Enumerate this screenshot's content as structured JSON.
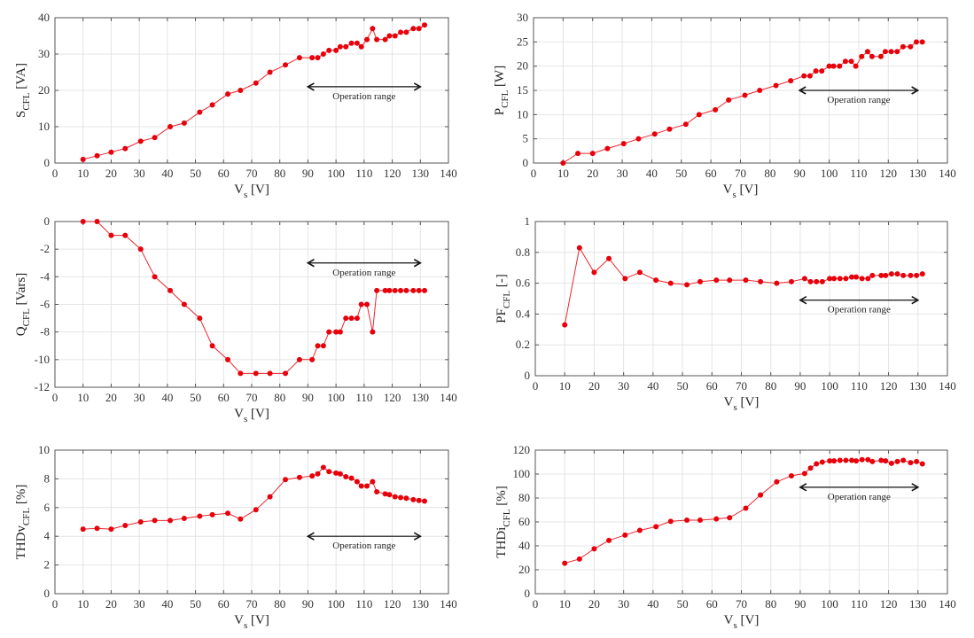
{
  "chart_data": [
    {
      "id": "s",
      "type": "line",
      "title": "",
      "ylabel_main": "S",
      "ylabel_sub": "CFL",
      "ylabel_unit": " [VA]",
      "xlabel_main": "V",
      "xlabel_sub": "s",
      "xlabel_unit": " [V]",
      "xlim": [
        0,
        140
      ],
      "ylim": [
        0,
        40
      ],
      "xticks": [
        0,
        10,
        20,
        30,
        40,
        50,
        60,
        70,
        80,
        90,
        100,
        110,
        120,
        130,
        140
      ],
      "yticks": [
        0,
        10,
        20,
        30,
        40
      ],
      "ytick_labels": [
        "0",
        "10",
        "20",
        "30",
        "40"
      ],
      "grid": true,
      "annotation": {
        "text": "Operation range",
        "x_start": 90,
        "x_end": 130,
        "y": 21
      },
      "series": [
        {
          "name": "S_CFL",
          "color": "#e8000b",
          "x": [
            10,
            15,
            20,
            25,
            30.5,
            35.5,
            41,
            46,
            51.5,
            56,
            61.5,
            66,
            71.5,
            76.5,
            82,
            87,
            91.5,
            93.5,
            95.5,
            97.5,
            100,
            101.5,
            103.5,
            105.5,
            107.5,
            109,
            111,
            113,
            114.5,
            117.5,
            119,
            121,
            123,
            125,
            127.5,
            129.5,
            131.5
          ],
          "y": [
            1,
            2,
            3,
            4,
            6,
            7,
            10,
            11,
            14,
            16,
            19,
            20,
            22,
            25,
            27,
            29,
            29,
            29,
            30,
            31,
            31,
            32,
            32,
            33,
            33,
            32,
            34,
            37,
            34,
            34,
            35,
            35,
            36,
            36,
            37,
            37,
            38
          ]
        }
      ]
    },
    {
      "id": "p",
      "type": "line",
      "title": "",
      "ylabel_main": "P",
      "ylabel_sub": "CFL",
      "ylabel_unit": " [W]",
      "xlabel_main": "V",
      "xlabel_sub": "s",
      "xlabel_unit": " [V]",
      "xlim": [
        0,
        140
      ],
      "ylim": [
        0,
        30
      ],
      "xticks": [
        0,
        10,
        20,
        30,
        40,
        50,
        60,
        70,
        80,
        90,
        100,
        110,
        120,
        130,
        140
      ],
      "yticks": [
        0,
        5,
        10,
        15,
        20,
        25,
        30
      ],
      "ytick_labels": [
        "0",
        "5",
        "10",
        "15",
        "20",
        "25",
        "30"
      ],
      "grid": true,
      "annotation": {
        "text": "Operation range",
        "x_start": 90,
        "x_end": 130,
        "y": 15
      },
      "series": [
        {
          "name": "P_CFL",
          "color": "#e8000b",
          "x": [
            10,
            15,
            20,
            25,
            30.5,
            35.5,
            41,
            46,
            51.5,
            56,
            61.5,
            66,
            71.5,
            76.5,
            82,
            87,
            91.5,
            93.5,
            95.5,
            97.5,
            100,
            101.5,
            103.5,
            105.5,
            107.5,
            109,
            111,
            113,
            114.5,
            117.5,
            119,
            121,
            123,
            125,
            127.5,
            129.5,
            131.5
          ],
          "y": [
            0,
            2,
            2,
            3,
            4,
            5,
            6,
            7,
            8,
            10,
            11,
            13,
            14,
            15,
            16,
            17,
            18,
            18,
            19,
            19,
            20,
            20,
            20,
            21,
            21,
            20,
            22,
            23,
            22,
            22,
            23,
            23,
            23,
            24,
            24,
            25,
            25
          ]
        }
      ]
    },
    {
      "id": "q",
      "type": "line",
      "title": "",
      "ylabel_main": "Q",
      "ylabel_sub": "CFL",
      "ylabel_unit": " [Vars]",
      "xlabel_main": "V",
      "xlabel_sub": "s",
      "xlabel_unit": " [V]",
      "xlim": [
        0,
        140
      ],
      "ylim": [
        -12,
        0
      ],
      "xticks": [
        0,
        10,
        20,
        30,
        40,
        50,
        60,
        70,
        80,
        90,
        100,
        110,
        120,
        130,
        140
      ],
      "yticks": [
        -12,
        -10,
        -8,
        -6,
        -4,
        -2,
        0
      ],
      "ytick_labels": [
        "-12",
        "-10",
        "-8",
        "-6",
        "-4",
        "-2",
        "0"
      ],
      "grid": true,
      "annotation": {
        "text": "Operation range",
        "x_start": 90,
        "x_end": 130,
        "y": -3
      },
      "series": [
        {
          "name": "Q_CFL",
          "color": "#e8000b",
          "x": [
            10,
            15,
            20,
            25,
            30.5,
            35.5,
            41,
            46,
            51.5,
            56,
            61.5,
            66,
            71.5,
            76.5,
            82,
            87,
            91.5,
            93.5,
            95.5,
            97.5,
            100,
            101.5,
            103.5,
            105.5,
            107.5,
            109,
            111,
            113,
            114.5,
            117.5,
            119,
            121,
            123,
            125,
            127.5,
            129.5,
            131.5
          ],
          "y": [
            0,
            0,
            -1,
            -1,
            -2,
            -4,
            -5,
            -6,
            -7,
            -9,
            -10,
            -11,
            -11,
            -11,
            -11,
            -10,
            -10,
            -9,
            -9,
            -8,
            -8,
            -8,
            -7,
            -7,
            -7,
            -6,
            -6,
            -8,
            -5,
            -5,
            -5,
            -5,
            -5,
            -5,
            -5,
            -5,
            -5
          ]
        }
      ]
    },
    {
      "id": "pf",
      "type": "line",
      "title": "",
      "ylabel_main": "PF",
      "ylabel_sub": "CFL",
      "ylabel_unit": " [-]",
      "xlabel_main": "V",
      "xlabel_sub": "s",
      "xlabel_unit": " [V]",
      "xlim": [
        0,
        140
      ],
      "ylim": [
        0,
        1
      ],
      "xticks": [
        0,
        10,
        20,
        30,
        40,
        50,
        60,
        70,
        80,
        90,
        100,
        110,
        120,
        130,
        140
      ],
      "yticks": [
        0,
        0.2,
        0.4,
        0.6,
        0.8,
        1
      ],
      "ytick_labels": [
        "0",
        "0.2",
        "0.4",
        "0.6",
        "0.8",
        "1"
      ],
      "grid": true,
      "annotation": {
        "text": "Operation range",
        "x_start": 90,
        "x_end": 130,
        "y": 0.49
      },
      "series": [
        {
          "name": "PF_CFL",
          "color": "#e8000b",
          "x": [
            10,
            15,
            20,
            25,
            30.5,
            35.5,
            41,
            46,
            51.5,
            56,
            61.5,
            66,
            71.5,
            76.5,
            82,
            87,
            91.5,
            93.5,
            95.5,
            97.5,
            100,
            101.5,
            103.5,
            105.5,
            107.5,
            109,
            111,
            113,
            114.5,
            117.5,
            119,
            121,
            123,
            125,
            127.5,
            129.5,
            131.5
          ],
          "y": [
            0.33,
            0.83,
            0.67,
            0.76,
            0.63,
            0.67,
            0.62,
            0.6,
            0.59,
            0.61,
            0.62,
            0.62,
            0.62,
            0.61,
            0.6,
            0.61,
            0.63,
            0.61,
            0.61,
            0.61,
            0.63,
            0.63,
            0.63,
            0.63,
            0.64,
            0.64,
            0.63,
            0.63,
            0.65,
            0.65,
            0.65,
            0.66,
            0.66,
            0.65,
            0.65,
            0.65,
            0.66
          ]
        }
      ]
    },
    {
      "id": "thdv",
      "type": "line",
      "title": "",
      "ylabel_main": "THDv",
      "ylabel_sub": "CFL",
      "ylabel_unit": " [%]",
      "xlabel_main": "V",
      "xlabel_sub": "s",
      "xlabel_unit": " [V]",
      "xlim": [
        0,
        140
      ],
      "ylim": [
        0,
        10
      ],
      "xticks": [
        0,
        10,
        20,
        30,
        40,
        50,
        60,
        70,
        80,
        90,
        100,
        110,
        120,
        130,
        140
      ],
      "yticks": [
        0,
        2,
        4,
        6,
        8,
        10
      ],
      "ytick_labels": [
        "0",
        "2",
        "4",
        "6",
        "8",
        "10"
      ],
      "grid": true,
      "annotation": {
        "text": "Operation range",
        "x_start": 90,
        "x_end": 130,
        "y": 4
      },
      "series": [
        {
          "name": "THDv_CFL",
          "color": "#e8000b",
          "x": [
            10,
            15,
            20,
            25,
            30.5,
            35.5,
            41,
            46,
            51.5,
            56,
            61.5,
            66,
            71.5,
            76.5,
            82,
            87,
            91.5,
            93.5,
            95.5,
            97.5,
            100,
            101.5,
            103.5,
            105.5,
            107.5,
            109,
            111,
            113,
            114.5,
            117.5,
            119,
            121,
            123,
            125,
            127.5,
            129.5,
            131.5
          ],
          "y": [
            4.5,
            4.55,
            4.5,
            4.75,
            5.0,
            5.1,
            5.1,
            5.25,
            5.4,
            5.5,
            5.6,
            5.2,
            5.85,
            6.75,
            7.95,
            8.1,
            8.2,
            8.35,
            8.8,
            8.5,
            8.4,
            8.35,
            8.15,
            8.05,
            7.8,
            7.5,
            7.5,
            7.8,
            7.1,
            6.95,
            6.9,
            6.75,
            6.7,
            6.65,
            6.55,
            6.5,
            6.45
          ]
        }
      ]
    },
    {
      "id": "thdi",
      "type": "line",
      "title": "",
      "ylabel_main": "THDi",
      "ylabel_sub": "CFL",
      "ylabel_unit": " [%]",
      "xlabel_main": "V",
      "xlabel_sub": "s",
      "xlabel_unit": " [V]",
      "xlim": [
        0,
        140
      ],
      "ylim": [
        0,
        120
      ],
      "xticks": [
        0,
        10,
        20,
        30,
        40,
        50,
        60,
        70,
        80,
        90,
        100,
        110,
        120,
        130,
        140
      ],
      "yticks": [
        0,
        20,
        40,
        60,
        80,
        100,
        120
      ],
      "ytick_labels": [
        "0",
        "20",
        "40",
        "60",
        "80",
        "100",
        "120"
      ],
      "grid": true,
      "annotation": {
        "text": "Operation range",
        "x_start": 90,
        "x_end": 130,
        "y": 89
      },
      "series": [
        {
          "name": "THDi_CFL",
          "color": "#e8000b",
          "x": [
            10,
            15,
            20,
            25,
            30.5,
            35.5,
            41,
            46,
            51.5,
            56,
            61.5,
            66,
            71.5,
            76.5,
            82,
            87,
            91.5,
            93.5,
            95.5,
            97.5,
            100,
            101.5,
            103.5,
            105.5,
            107.5,
            109,
            111,
            113,
            114.5,
            117.5,
            119,
            121,
            123,
            125,
            127.5,
            129.5,
            131.5
          ],
          "y": [
            25.5,
            29,
            37.5,
            44.5,
            49,
            53,
            56,
            60.5,
            61.5,
            61.5,
            62.5,
            63.5,
            71.5,
            82.5,
            93.5,
            98.5,
            100.5,
            105,
            108.5,
            110,
            111,
            111,
            111.5,
            111.5,
            111.5,
            111,
            112,
            112,
            110.5,
            111.5,
            111,
            109,
            110.5,
            111.5,
            109.5,
            110.5,
            108.5
          ]
        }
      ]
    }
  ]
}
